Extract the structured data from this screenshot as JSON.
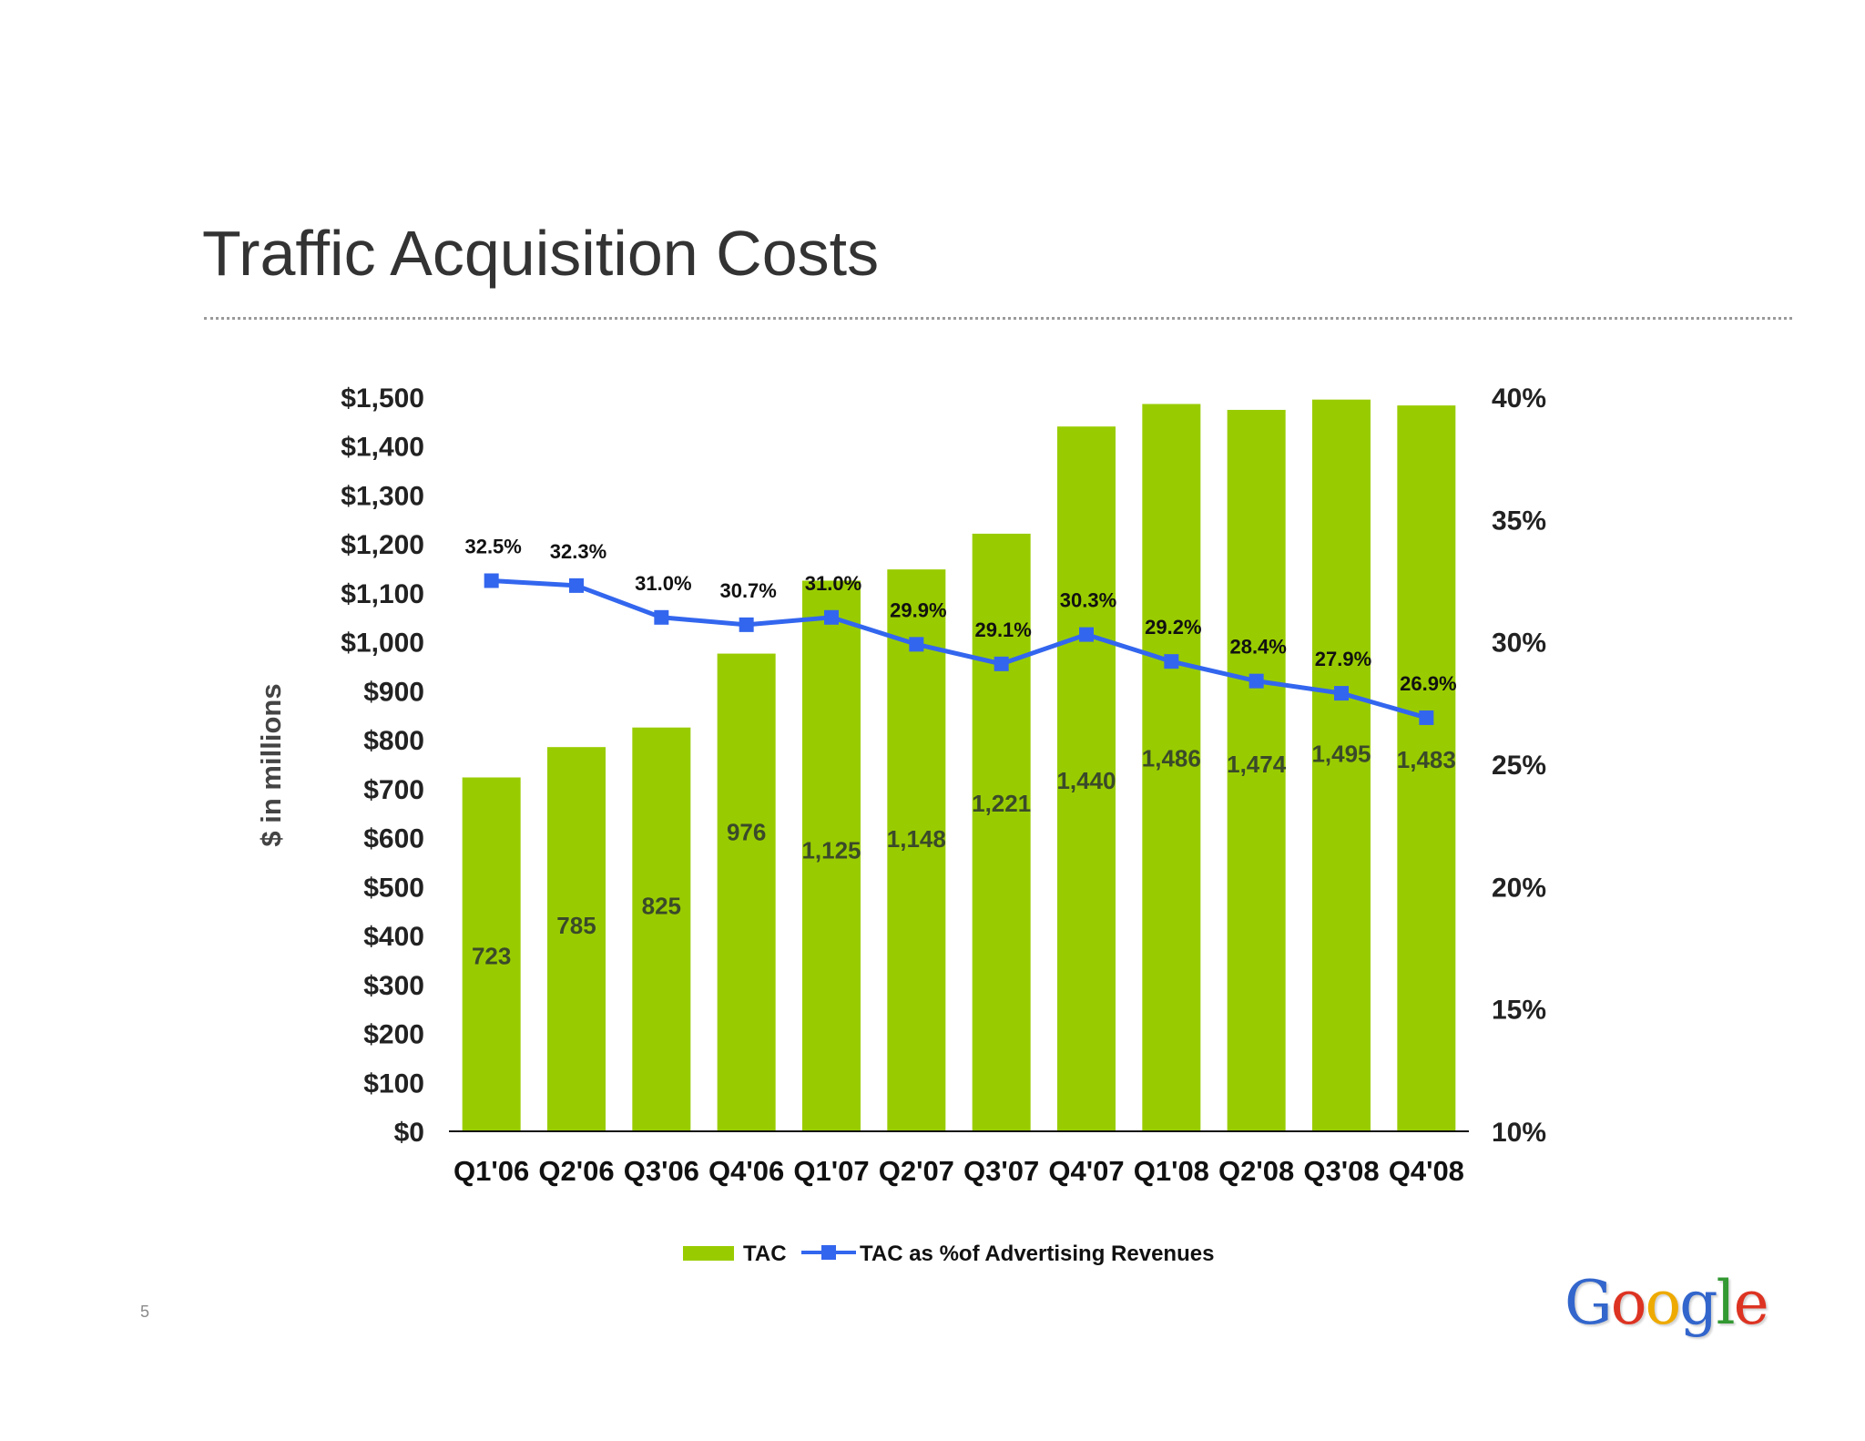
{
  "page": {
    "title": "Traffic Acquisition Costs",
    "page_number": "5",
    "logo_text": "Google",
    "logo_colors": [
      "#3366cc",
      "#dd3322",
      "#eeaa00",
      "#3366cc",
      "#339933",
      "#dd3322"
    ]
  },
  "chart_data": {
    "type": "bar",
    "title": "Traffic Acquisition Costs",
    "categories": [
      "Q1'06",
      "Q2'06",
      "Q3'06",
      "Q4'06",
      "Q1'07",
      "Q2'07",
      "Q3'07",
      "Q4'07",
      "Q1'08",
      "Q2'08",
      "Q3'08",
      "Q4'08"
    ],
    "ylabel": "$ in millions",
    "ylim": [
      0,
      1500
    ],
    "y_ticks": [
      "$0",
      "$100",
      "$200",
      "$300",
      "$400",
      "$500",
      "$600",
      "$700",
      "$800",
      "$900",
      "$1,000",
      "$1,100",
      "$1,200",
      "$1,300",
      "$1,400",
      "$1,500"
    ],
    "y2lim": [
      10,
      40
    ],
    "y2_ticks": [
      "10%",
      "15%",
      "20%",
      "25%",
      "30%",
      "35%",
      "40%"
    ],
    "grid": false,
    "legend_position": "bottom-center",
    "series": [
      {
        "name": "TAC",
        "type": "bar",
        "axis": "left",
        "color": "#99cc00",
        "values": [
          723,
          785,
          825,
          976,
          1125,
          1148,
          1221,
          1440,
          1486,
          1474,
          1495,
          1483
        ],
        "labels": [
          "723",
          "785",
          "825",
          "976",
          "1,125",
          "1,148",
          "1,221",
          "1,440",
          "1,486",
          "1,474",
          "1,495",
          "1,483"
        ]
      },
      {
        "name": "TAC as % of Advertising Revenues",
        "type": "line",
        "axis": "right",
        "color": "#3366ee",
        "values": [
          32.5,
          32.3,
          31.0,
          30.7,
          31.0,
          29.9,
          29.1,
          30.3,
          29.2,
          28.4,
          27.9,
          26.9
        ],
        "labels": [
          "32.5%",
          "32.3%",
          "31.0%",
          "30.7%",
          "31.0%",
          "29.9%",
          "29.1%",
          "30.3%",
          "29.2%",
          "28.4%",
          "27.9%",
          "26.9%"
        ]
      }
    ],
    "legend": [
      {
        "label": "TAC",
        "marker": "bar"
      },
      {
        "label": "TAC as %of Advertising Revenues",
        "marker": "line"
      }
    ]
  }
}
